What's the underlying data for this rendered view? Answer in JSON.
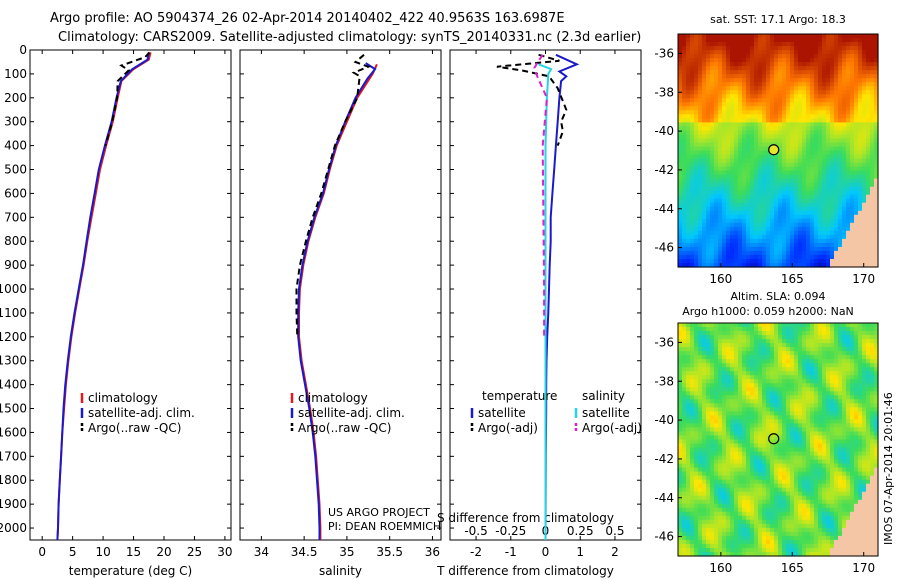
{
  "title_line1": "Argo profile: AO 5904374_26 02-Apr-2014 20140402_422 40.9563S 163.6987E",
  "title_line2": "Climatology: CARS2009. Satellite-adjusted climatology: synTS_20140331.nc (2.3d earlier)",
  "credit_line1": "US ARGO PROJECT",
  "credit_line2": "PI: DEAN ROEMMICH",
  "side_stamp": "IMOS 07-Apr-2014 20:01:46",
  "colors": {
    "climatology": "#e0191e",
    "satellite": "#1a1acc",
    "argo": "#000000",
    "salinity_sat": "#22d4e6",
    "salinity_argo": "#e020c8",
    "land": "#f5c6a5"
  },
  "chart_data": [
    {
      "type": "line",
      "title": "",
      "xlabel": "temperature (deg C)",
      "ylabel": "",
      "xlim": [
        -2,
        31
      ],
      "ylim": [
        2050,
        0
      ],
      "x_ticks": [
        "0",
        "5",
        "10",
        "15",
        "20",
        "25",
        "30"
      ],
      "y_ticks": [
        "0",
        "100",
        "200",
        "300",
        "400",
        "500",
        "600",
        "700",
        "800",
        "900",
        "1000",
        "1100",
        "1200",
        "1300",
        "1400",
        "1500",
        "1600",
        "1700",
        "1800",
        "1900",
        "2000"
      ],
      "legend": [
        "climatology",
        "satellite-adj. clim.",
        "Argo(..raw -QC)"
      ],
      "series": [
        {
          "name": "climatology",
          "style": "solid",
          "points": [
            [
              17.8,
              10
            ],
            [
              17.5,
              40
            ],
            [
              15,
              80
            ],
            [
              13,
              130
            ],
            [
              12.4,
              200
            ],
            [
              11.6,
              300
            ],
            [
              10.5,
              400
            ],
            [
              9.5,
              500
            ],
            [
              8.8,
              600
            ],
            [
              8.1,
              700
            ],
            [
              7.4,
              800
            ],
            [
              6.8,
              900
            ],
            [
              6.1,
              1000
            ],
            [
              5.4,
              1100
            ],
            [
              4.8,
              1200
            ],
            [
              4.3,
              1300
            ],
            [
              3.9,
              1400
            ],
            [
              3.6,
              1500
            ],
            [
              3.3,
              1600
            ],
            [
              3.1,
              1700
            ],
            [
              2.9,
              1800
            ],
            [
              2.7,
              1900
            ],
            [
              2.6,
              2000
            ],
            [
              2.5,
              2050
            ]
          ]
        },
        {
          "name": "satellite-adj. clim.",
          "style": "solid",
          "points": [
            [
              17.5,
              10
            ],
            [
              17.3,
              40
            ],
            [
              14.8,
              80
            ],
            [
              12.9,
              130
            ],
            [
              12.2,
              200
            ],
            [
              11.4,
              300
            ],
            [
              10.3,
              400
            ],
            [
              9.3,
              500
            ],
            [
              8.6,
              600
            ],
            [
              7.9,
              700
            ],
            [
              7.3,
              800
            ],
            [
              6.7,
              900
            ],
            [
              6.0,
              1000
            ],
            [
              5.3,
              1100
            ],
            [
              4.7,
              1200
            ],
            [
              4.2,
              1300
            ],
            [
              3.8,
              1400
            ],
            [
              3.5,
              1500
            ],
            [
              3.3,
              1600
            ],
            [
              3.1,
              1700
            ],
            [
              2.9,
              1800
            ],
            [
              2.7,
              1900
            ],
            [
              2.6,
              2000
            ],
            [
              2.5,
              2050
            ]
          ]
        },
        {
          "name": "Argo(..raw -QC)",
          "style": "dashed",
          "points": [
            [
              17.6,
              10
            ],
            [
              16.9,
              30
            ],
            [
              13,
              65
            ],
            [
              14.2,
              85
            ],
            [
              12.4,
              130
            ],
            [
              12.3,
              200
            ],
            [
              11.5,
              300
            ],
            [
              10.4,
              400
            ]
          ]
        }
      ]
    },
    {
      "type": "line",
      "title": "",
      "xlabel": "salinity",
      "ylabel": "",
      "xlim": [
        33.75,
        36.1
      ],
      "ylim": [
        2050,
        0
      ],
      "x_ticks": [
        "34",
        "34.5",
        "35",
        "35.5",
        "36"
      ],
      "legend": [
        "climatology",
        "satellite-adj. clim.",
        "Argo(..raw -QC)"
      ],
      "series": [
        {
          "name": "climatology",
          "style": "solid",
          "points": [
            [
              35.35,
              60
            ],
            [
              35.3,
              100
            ],
            [
              35.12,
              200
            ],
            [
              35.0,
              300
            ],
            [
              34.88,
              400
            ],
            [
              34.8,
              500
            ],
            [
              34.73,
              600
            ],
            [
              34.63,
              700
            ],
            [
              34.55,
              800
            ],
            [
              34.49,
              900
            ],
            [
              34.45,
              1000
            ],
            [
              34.44,
              1100
            ],
            [
              34.44,
              1200
            ],
            [
              34.47,
              1300
            ],
            [
              34.52,
              1400
            ],
            [
              34.57,
              1500
            ],
            [
              34.61,
              1600
            ],
            [
              34.64,
              1700
            ],
            [
              34.66,
              1800
            ],
            [
              34.68,
              1900
            ],
            [
              34.69,
              2000
            ],
            [
              34.69,
              2050
            ]
          ]
        },
        {
          "name": "satellite-adj. clim.",
          "style": "solid",
          "points": [
            [
              35.22,
              55
            ],
            [
              35.33,
              80
            ],
            [
              35.24,
              120
            ],
            [
              35.1,
              200
            ],
            [
              34.98,
              300
            ],
            [
              34.87,
              400
            ],
            [
              34.79,
              500
            ],
            [
              34.72,
              600
            ],
            [
              34.62,
              700
            ],
            [
              34.54,
              800
            ],
            [
              34.48,
              900
            ],
            [
              34.44,
              1000
            ],
            [
              34.43,
              1100
            ],
            [
              34.43,
              1200
            ],
            [
              34.46,
              1300
            ],
            [
              34.51,
              1400
            ],
            [
              34.56,
              1500
            ],
            [
              34.6,
              1600
            ],
            [
              34.63,
              1700
            ],
            [
              34.65,
              1800
            ],
            [
              34.67,
              1900
            ],
            [
              34.68,
              2000
            ],
            [
              34.68,
              2050
            ]
          ]
        },
        {
          "name": "Argo(..raw -QC)",
          "style": "dashed",
          "points": [
            [
              35.2,
              20
            ],
            [
              35.1,
              50
            ],
            [
              35.25,
              70
            ],
            [
              35.08,
              95
            ],
            [
              35.15,
              110
            ],
            [
              35.12,
              200
            ],
            [
              34.98,
              300
            ],
            [
              34.86,
              400
            ],
            [
              34.78,
              500
            ],
            [
              34.7,
              600
            ],
            [
              34.6,
              700
            ],
            [
              34.52,
              800
            ],
            [
              34.45,
              900
            ],
            [
              34.41,
              1000
            ],
            [
              34.41,
              1100
            ],
            [
              34.42,
              1200
            ]
          ]
        }
      ]
    },
    {
      "type": "line",
      "title": "",
      "xlabel": "T difference from climatology",
      "xlabel_top": "S difference from climatology",
      "xlim": [
        -2.75,
        2.75
      ],
      "ylim": [
        2050,
        0
      ],
      "x_ticks": [
        "-2",
        "-1",
        "0",
        "1",
        "2"
      ],
      "x_ticks_top": [
        "-0.5",
        "-0.25",
        "0",
        "0.25",
        "0.5"
      ],
      "legend_left_title": "temperature",
      "legend_right_title": "salinity",
      "legend_left": [
        "satellite",
        "Argo(-adj)"
      ],
      "legend_right": [
        "satellite",
        "Argo(-adj)"
      ],
      "series": [
        {
          "name": "temperature satellite",
          "style": "solid",
          "points": [
            [
              0.3,
              20
            ],
            [
              0.9,
              60
            ],
            [
              0.4,
              90
            ],
            [
              0.6,
              110
            ],
            [
              0.45,
              130
            ],
            [
              0.4,
              200
            ],
            [
              0.35,
              300
            ],
            [
              0.3,
              400
            ],
            [
              0.25,
              500
            ],
            [
              0.2,
              600
            ],
            [
              0.15,
              700
            ],
            [
              0.15,
              800
            ],
            [
              0.12,
              900
            ],
            [
              0.1,
              1000
            ],
            [
              0.08,
              1100
            ],
            [
              0.05,
              1200
            ],
            [
              0.03,
              1300
            ],
            [
              0.02,
              1400
            ],
            [
              0.02,
              1500
            ],
            [
              0.01,
              1700
            ],
            [
              0.0,
              2050
            ]
          ]
        },
        {
          "name": "temperature Argo(-adj)",
          "style": "dashed",
          "points": [
            [
              -0.2,
              20
            ],
            [
              0.4,
              45
            ],
            [
              -1.4,
              70
            ],
            [
              -0.7,
              85
            ],
            [
              0.1,
              110
            ],
            [
              0.35,
              160
            ],
            [
              0.6,
              250
            ],
            [
              0.45,
              300
            ],
            [
              0.5,
              340
            ],
            [
              0.35,
              400
            ]
          ]
        },
        {
          "name": "salinity satellite",
          "style": "solid",
          "points": [
            [
              -0.05,
              60
            ],
            [
              0.04,
              80
            ],
            [
              0.02,
              100
            ],
            [
              0.01,
              200
            ],
            [
              0.0,
              400
            ],
            [
              0.0,
              2050
            ]
          ]
        },
        {
          "name": "salinity Argo(-adj)",
          "style": "dashed",
          "points": [
            [
              -0.02,
              20
            ],
            [
              -0.05,
              45
            ],
            [
              -0.08,
              75
            ],
            [
              -0.06,
              110
            ],
            [
              0.01,
              200
            ],
            [
              -0.02,
              400
            ],
            [
              -0.01,
              1000
            ],
            [
              -0.01,
              1200
            ]
          ]
        }
      ]
    },
    {
      "type": "heatmap",
      "title": "sat. SST: 17.1 Argo: 18.3",
      "xlim": [
        157,
        171
      ],
      "ylim": [
        -47,
        -35
      ],
      "x_ticks": [
        "160",
        "165",
        "170"
      ],
      "y_ticks": [
        "-36",
        "-38",
        "-40",
        "-42",
        "-44",
        "-46"
      ],
      "marker": {
        "lon": 163.7,
        "lat": -40.96
      }
    },
    {
      "type": "heatmap",
      "title": "Altim. SLA: 0.094",
      "subtitle": "Argo h1000: 0.059 h2000: NaN",
      "xlim": [
        157,
        171
      ],
      "ylim": [
        -47,
        -35
      ],
      "x_ticks": [
        "160",
        "165",
        "170"
      ],
      "y_ticks": [
        "-36",
        "-38",
        "-40",
        "-42",
        "-44",
        "-46"
      ],
      "marker": {
        "lon": 163.7,
        "lat": -40.96
      }
    }
  ]
}
